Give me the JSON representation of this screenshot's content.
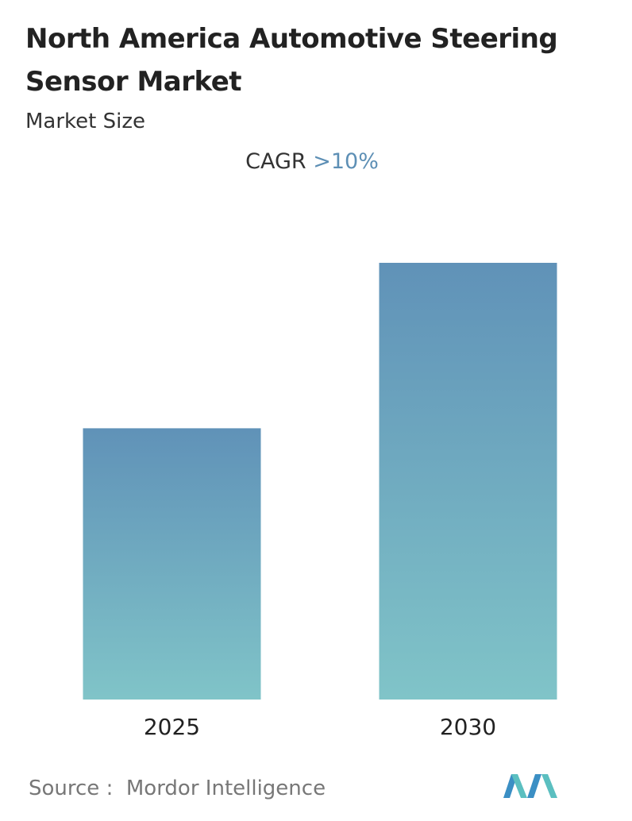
{
  "chart_data": {
    "type": "bar",
    "title": "North America Automotive Steering Sensor Market",
    "subtitle": "Market Size",
    "cagr_label": "CAGR",
    "cagr_value": ">10%",
    "categories": [
      "2025",
      "2030"
    ],
    "values": [
      1.0,
      1.61
    ],
    "ylim": [
      0,
      1.61
    ],
    "gradient": [
      "#6092b8",
      "#80c4c8"
    ],
    "source_label": "Source :",
    "source": "Mordor Intelligence"
  }
}
